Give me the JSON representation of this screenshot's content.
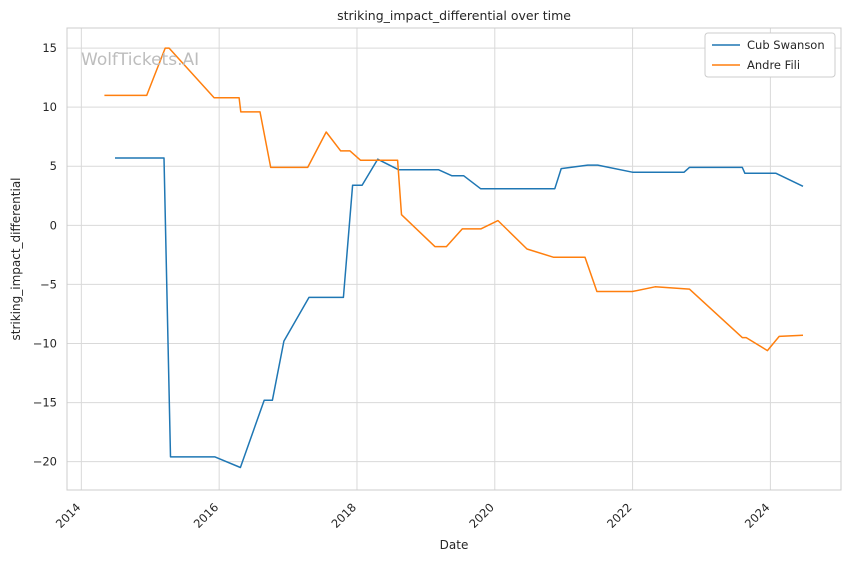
{
  "chart_data": {
    "type": "line",
    "title": "striking_impact_differential over time",
    "xlabel": "Date",
    "ylabel": "striking_impact_differential",
    "watermark": "WolfTickets.AI",
    "x_ticks": [
      "2014",
      "2016",
      "2018",
      "2020",
      "2022",
      "2024"
    ],
    "y_ticks": [
      "−20",
      "−15",
      "−10",
      "−5",
      "0",
      "5",
      "10",
      "15"
    ],
    "xlim": [
      "2013-10-17",
      "2025-01-10"
    ],
    "ylim": [
      -22.4,
      16.7
    ],
    "grid": true,
    "legend_position": "top-right",
    "series": [
      {
        "name": "Cub Swanson",
        "color": "#1f77b4",
        "points": [
          [
            "2014-06-28",
            5.7
          ],
          [
            "2015-03-15",
            5.7
          ],
          [
            "2015-04-18",
            -19.6
          ],
          [
            "2015-12-10",
            -19.6
          ],
          [
            "2016-04-23",
            -20.5
          ],
          [
            "2016-08-27",
            -14.8
          ],
          [
            "2016-10-10",
            -14.8
          ],
          [
            "2016-12-10",
            -9.8
          ],
          [
            "2017-04-22",
            -6.1
          ],
          [
            "2017-10-21",
            -6.1
          ],
          [
            "2017-12-09",
            3.4
          ],
          [
            "2018-01-28",
            3.4
          ],
          [
            "2018-04-21",
            5.6
          ],
          [
            "2018-08-10",
            4.7
          ],
          [
            "2019-03-10",
            4.7
          ],
          [
            "2019-05-18",
            4.2
          ],
          [
            "2019-07-20",
            4.2
          ],
          [
            "2019-10-18",
            3.1
          ],
          [
            "2020-11-15",
            3.1
          ],
          [
            "2020-12-19",
            4.8
          ],
          [
            "2021-05-08",
            5.1
          ],
          [
            "2021-06-30",
            5.1
          ],
          [
            "2021-12-31",
            4.5
          ],
          [
            "2022-10-01",
            4.5
          ],
          [
            "2022-10-29",
            4.9
          ],
          [
            "2023-08-05",
            4.9
          ],
          [
            "2023-08-19",
            4.4
          ],
          [
            "2024-01-31",
            4.4
          ],
          [
            "2024-06-22",
            3.3
          ]
        ]
      },
      {
        "name": "Andre Fili",
        "color": "#ff7f0e",
        "points": [
          [
            "2014-05-03",
            11.0
          ],
          [
            "2014-12-13",
            11.0
          ],
          [
            "2015-03-21",
            15.0
          ],
          [
            "2015-04-11",
            15.0
          ],
          [
            "2015-12-05",
            10.8
          ],
          [
            "2016-04-16",
            10.8
          ],
          [
            "2016-04-25",
            9.6
          ],
          [
            "2016-08-05",
            9.6
          ],
          [
            "2016-10-01",
            4.9
          ],
          [
            "2017-04-15",
            4.9
          ],
          [
            "2017-07-22",
            7.9
          ],
          [
            "2017-10-07",
            6.3
          ],
          [
            "2017-11-25",
            6.3
          ],
          [
            "2018-01-20",
            5.5
          ],
          [
            "2018-08-04",
            5.5
          ],
          [
            "2018-08-25",
            0.9
          ],
          [
            "2019-02-18",
            -1.8
          ],
          [
            "2019-04-20",
            -1.8
          ],
          [
            "2019-07-13",
            -0.3
          ],
          [
            "2019-10-19",
            -0.3
          ],
          [
            "2020-01-18",
            0.4
          ],
          [
            "2020-06-20",
            -2.0
          ],
          [
            "2020-11-07",
            -2.7
          ],
          [
            "2021-04-24",
            -2.7
          ],
          [
            "2021-06-26",
            -5.6
          ],
          [
            "2021-12-31",
            -5.6
          ],
          [
            "2022-04-30",
            -5.2
          ],
          [
            "2022-10-29",
            -5.4
          ],
          [
            "2023-08-05",
            -9.5
          ],
          [
            "2023-08-26",
            -9.5
          ],
          [
            "2023-12-16",
            -10.6
          ],
          [
            "2024-02-17",
            -9.4
          ],
          [
            "2024-06-22",
            -9.3
          ]
        ]
      }
    ]
  }
}
